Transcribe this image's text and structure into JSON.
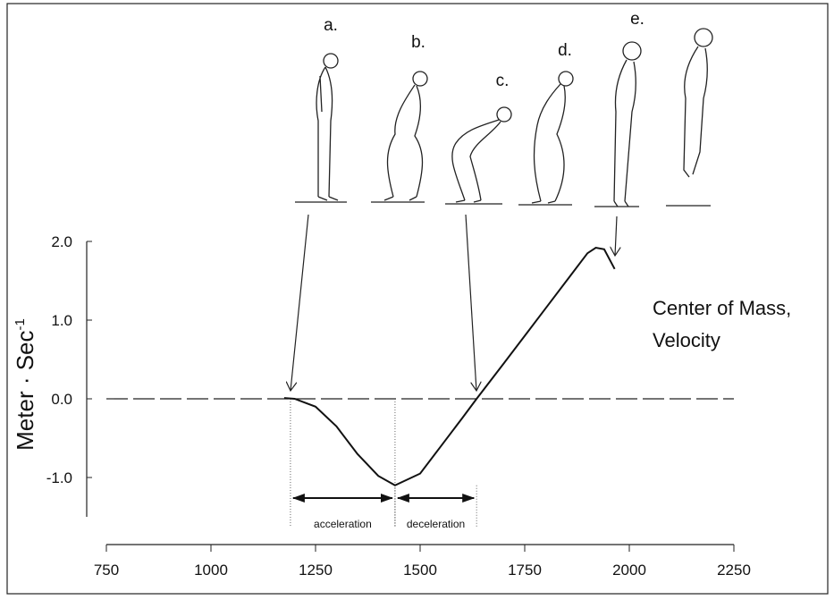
{
  "chart_data": {
    "type": "line",
    "ylabel": "Meter · Sec",
    "ylabel_superscript": "-1",
    "annotations": [
      "Center of Mass,",
      "Velocity"
    ],
    "figure_labels": [
      "a.",
      "b.",
      "c.",
      "d.",
      "e."
    ],
    "x": [
      1175,
      1200,
      1250,
      1300,
      1350,
      1400,
      1440,
      1500,
      1550,
      1600,
      1635,
      1700,
      1750,
      1800,
      1850,
      1900,
      1920,
      1940,
      1965
    ],
    "series": [
      {
        "color": "#111111",
        "values": [
          0.01,
          0,
          -0.1,
          -0.35,
          -0.7,
          -0.98,
          -1.1,
          -0.95,
          -0.6,
          -0.25,
          0,
          0.45,
          0.8,
          1.15,
          1.5,
          1.85,
          1.92,
          1.9,
          1.65
        ]
      }
    ],
    "phases": [
      {
        "label": "acceleration",
        "start": 1190,
        "end": 1440
      },
      {
        "label": "deceleration",
        "start": 1440,
        "end": 1635
      }
    ],
    "xlim": [
      750,
      2250
    ],
    "xticks": [
      750,
      1000,
      1250,
      1500,
      1750,
      2000,
      2250
    ],
    "ylim": [
      -1.5,
      2.0
    ],
    "yticks": [
      {
        "value": 2,
        "label": "2.0"
      },
      {
        "value": 1,
        "label": "1.0"
      },
      {
        "value": 0,
        "label": "0.0"
      },
      {
        "value": -1,
        "label": "-1.0"
      }
    ],
    "zero_line": true
  }
}
